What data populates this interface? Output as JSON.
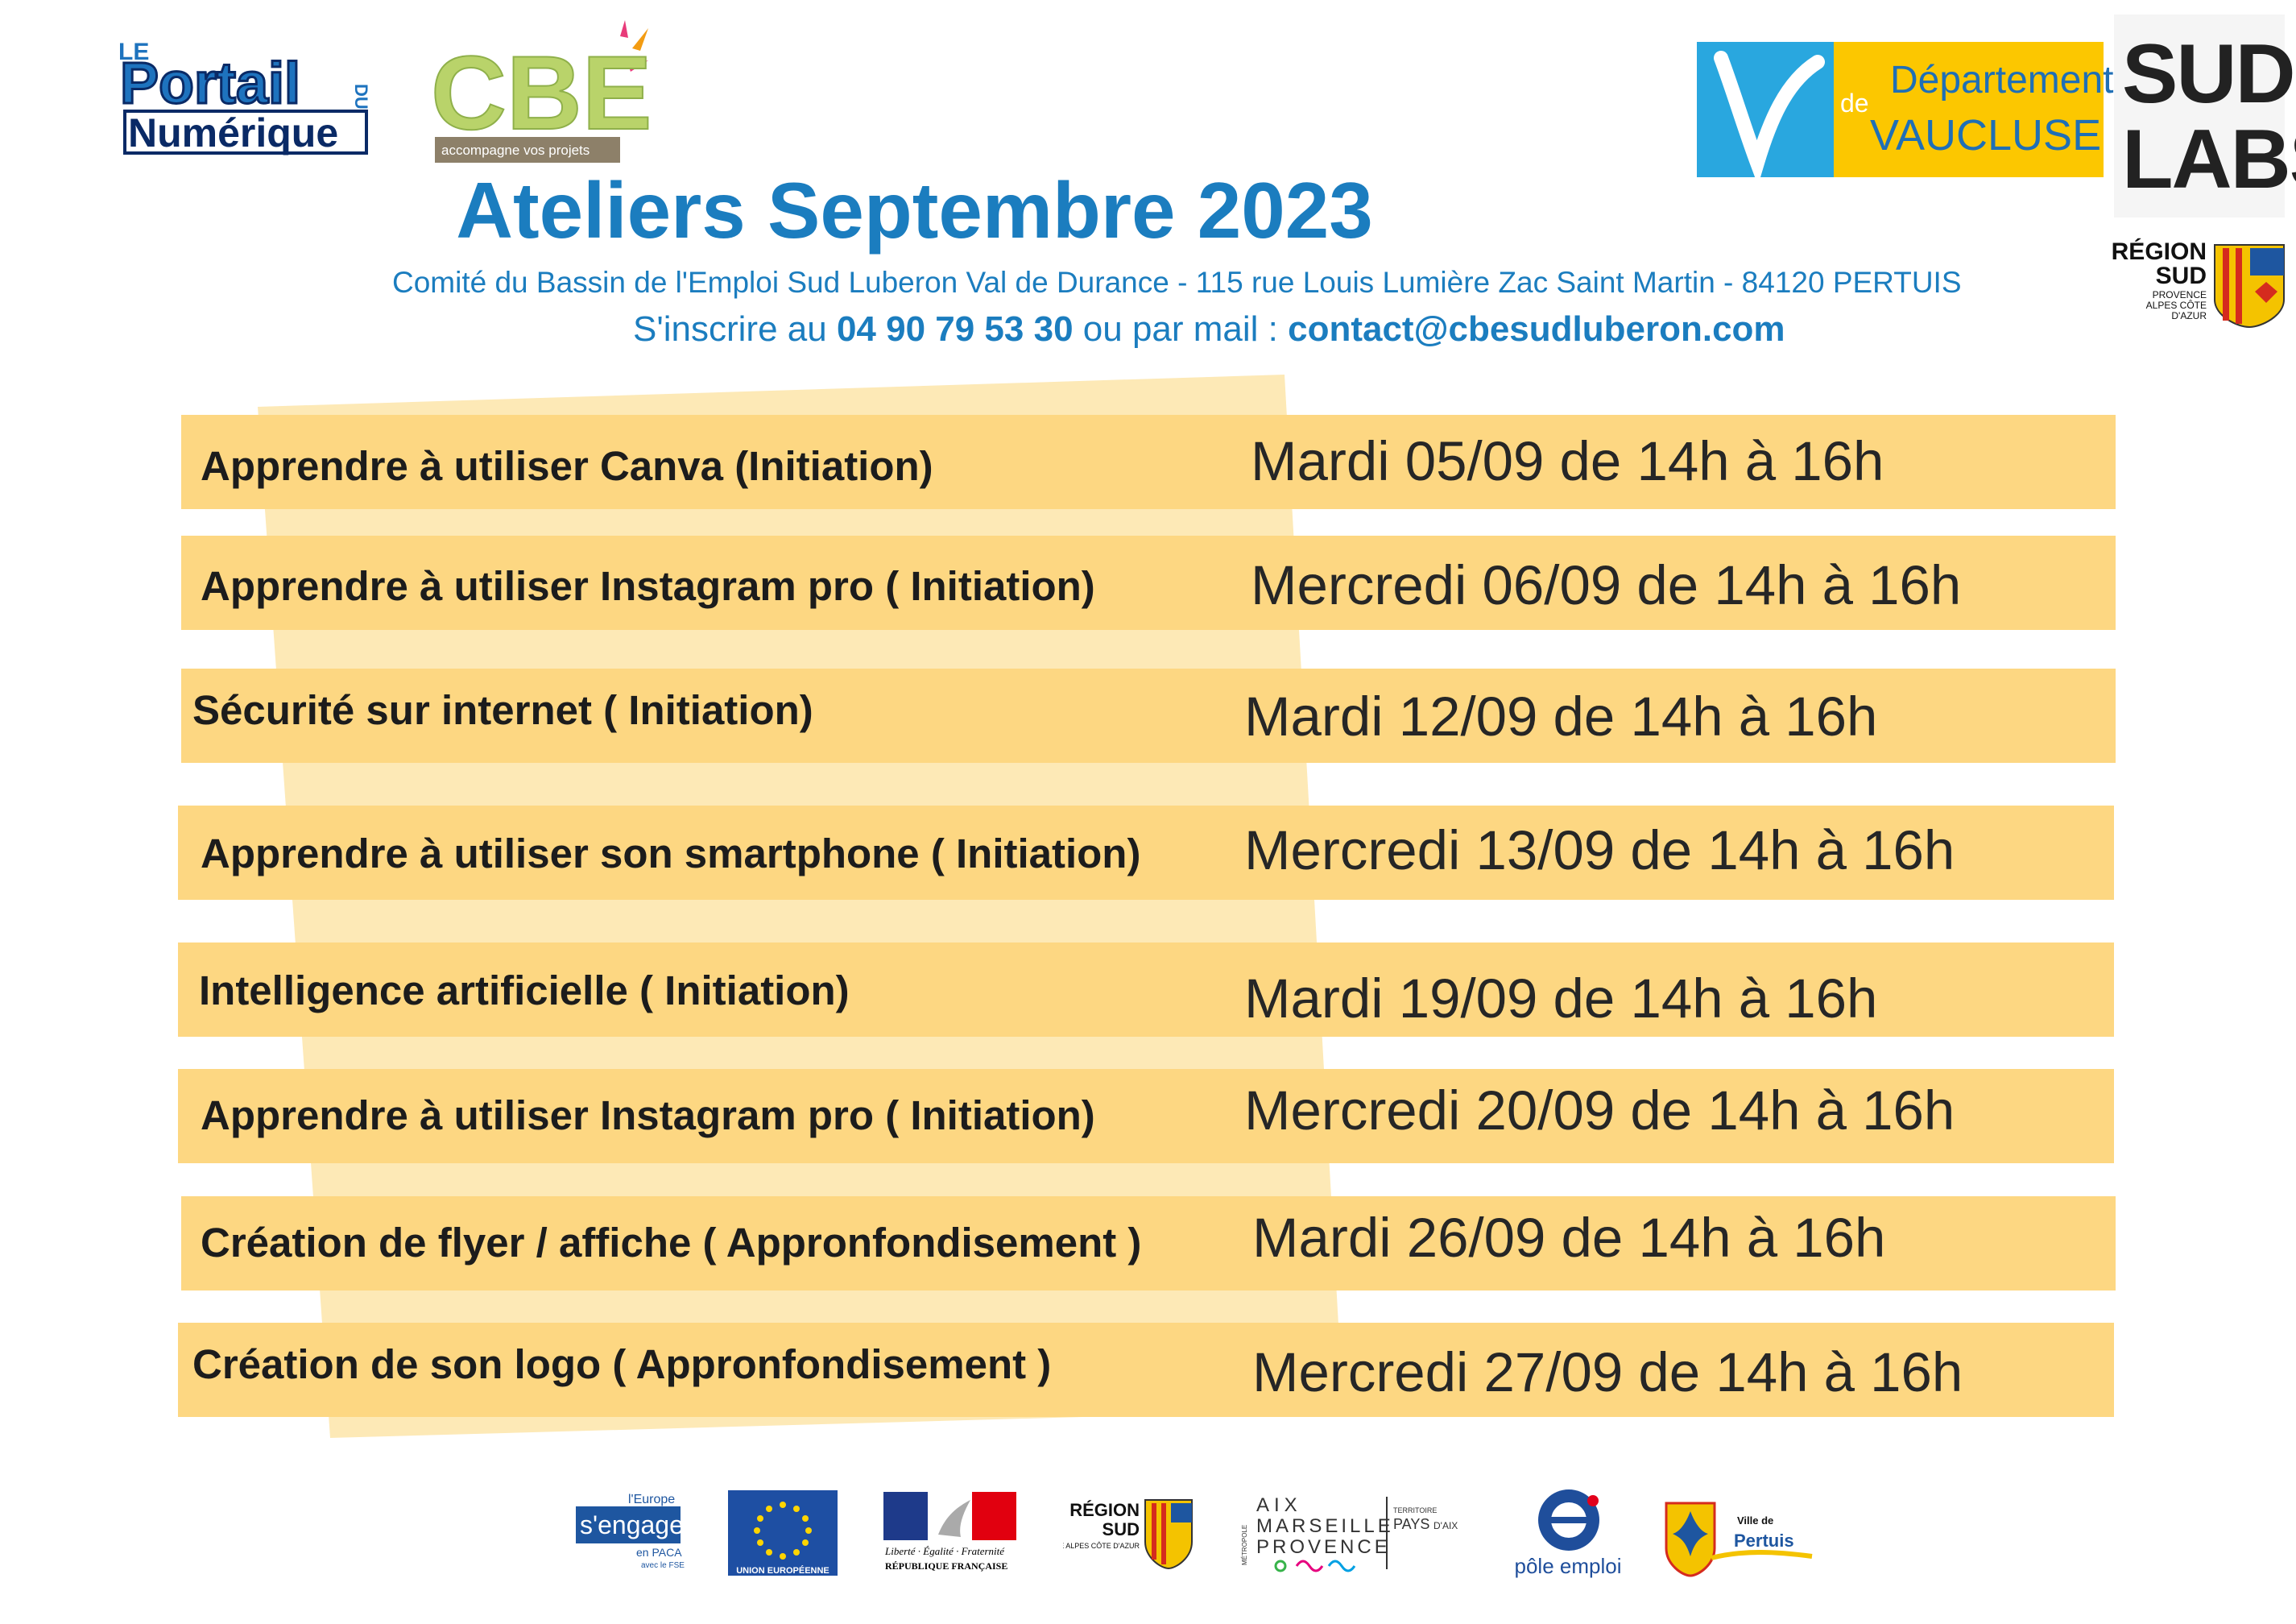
{
  "header": {
    "title": "Ateliers Septembre 2023",
    "address": "Comité du Bassin de l'Emploi Sud Luberon Val de Durance - 115 rue Louis Lumière Zac Saint Martin - 84120 PERTUIS",
    "contact_prefix": "S'inscrire au ",
    "phone": "04 90 79 53 30",
    "contact_mid": " ou par mail : ",
    "email": "contact@cbesudluberon.com"
  },
  "logos": {
    "portail": {
      "le": "LE",
      "portail": "Portail",
      "du": "DU",
      "numerique": "Numérique"
    },
    "cbe": {
      "name": "CBE",
      "tagline": "accompagne vos projets"
    },
    "vaucluse": {
      "line1": "Département",
      "de": "de",
      "line2": "VAUCLUSE"
    },
    "sudlabs": {
      "line1": "SUD",
      "line2": "LABS"
    },
    "region_sud": {
      "line1": "RÉGION",
      "line2": "SUD",
      "small": "PROVENCE ALPES CÔTE D'AZUR"
    }
  },
  "workshops": [
    {
      "title": "Apprendre à utiliser Canva (Initiation)",
      "date": "Mardi 05/09 de 14h à 16h"
    },
    {
      "title": "Apprendre à utiliser Instagram pro ( Initiation)",
      "date": "Mercredi 06/09 de 14h à 16h"
    },
    {
      "title": "Sécurité sur internet ( Initiation)",
      "date": "Mardi 12/09 de 14h à 16h"
    },
    {
      "title": "Apprendre à utiliser son smartphone ( Initiation)",
      "date": "Mercredi 13/09 de 14h à 16h"
    },
    {
      "title": "Intelligence artificielle ( Initiation)",
      "date": "Mardi 19/09 de 14h à 16h"
    },
    {
      "title": "Apprendre à utiliser Instagram pro ( Initiation)",
      "date": "Mercredi 20/09 de 14h à 16h"
    },
    {
      "title": "Création de flyer / affiche  ( Appronfondisement )",
      "date": "Mardi 26/09 de 14h à 16h"
    },
    {
      "title": "Création de son logo ( Appronfondisement )",
      "date": "Mercredi 27/09 de 14h à 16h"
    }
  ],
  "footer_logos": {
    "europe": {
      "l1": "l'Europe",
      "l2": "s'engage",
      "l3": "en PACA",
      "l4": "avec le FSE"
    },
    "ue": {
      "label": "UNION EUROPÉENNE"
    },
    "rf": {
      "motto": "Liberté · Égalité · Fraternité",
      "name": "RÉPUBLIQUE FRANÇAISE"
    },
    "region": {
      "l1": "RÉGION",
      "l2": "SUD",
      "small": "PROVENCE ALPES CÔTE D'AZUR"
    },
    "amp": {
      "l1": "AIX",
      "l2": "MARSEILLE",
      "l3": "PROVENCE",
      "side": "MÉTROPOLE",
      "t1": "TERRITOIRE",
      "t2": "PAYS",
      "t3": "D'AIX"
    },
    "pole": {
      "label": "pôle emploi"
    },
    "pertuis": {
      "l1": "Ville de",
      "l2": "Pertuis"
    }
  },
  "colors": {
    "row": "#fdd782",
    "band": "#fde9b6",
    "blue": "#1b7dbf"
  }
}
